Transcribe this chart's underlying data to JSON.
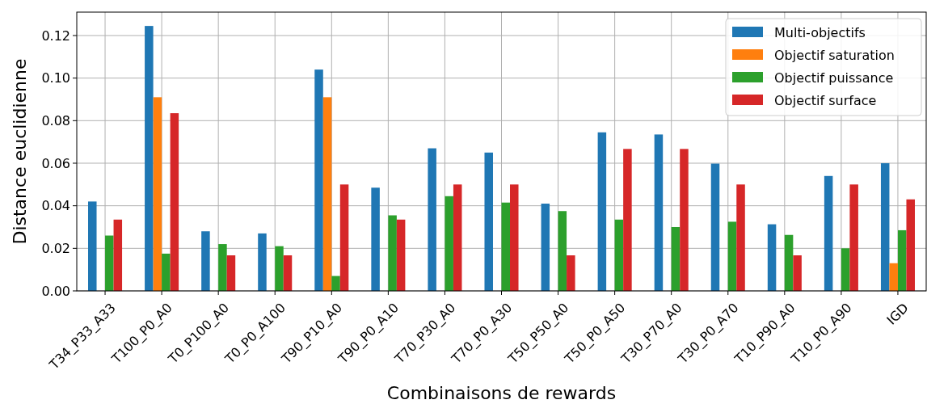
{
  "chart_data": {
    "type": "bar",
    "xlabel": "Combinaisons de rewards",
    "ylabel": "Distance euclidienne",
    "categories": [
      "T34_P33_A33",
      "T100_P0_A0",
      "T0_P100_A0",
      "T0_P0_A100",
      "T90_P10_A0",
      "T90_P0_A10",
      "T70_P30_A0",
      "T70_P0_A30",
      "T50_P50_A0",
      "T50_P0_A50",
      "T30_P70_A0",
      "T30_P0_A70",
      "T10_P90_A0",
      "T10_P0_A90",
      "IGD"
    ],
    "series": [
      {
        "name": "Multi-objectifs",
        "color": "#1f77b4",
        "values": [
          0.042,
          0.1245,
          0.028,
          0.027,
          0.104,
          0.0485,
          0.067,
          0.065,
          0.041,
          0.0745,
          0.0735,
          0.0598,
          0.0313,
          0.054,
          0.06
        ]
      },
      {
        "name": "Objectif saturation",
        "color": "#ff7f0e",
        "values": [
          0,
          0.091,
          0,
          0,
          0.091,
          0,
          0,
          0,
          0,
          0,
          0,
          0,
          0,
          0,
          0.013
        ]
      },
      {
        "name": "Objectif puissance",
        "color": "#2ca02c",
        "values": [
          0.026,
          0.0175,
          0.022,
          0.021,
          0.007,
          0.0355,
          0.0445,
          0.0415,
          0.0375,
          0.0335,
          0.03,
          0.0325,
          0.0263,
          0.02,
          0.0285
        ]
      },
      {
        "name": "Objectif surface",
        "color": "#d62728",
        "values": [
          0.0335,
          0.0835,
          0.0167,
          0.0167,
          0.05,
          0.0335,
          0.05,
          0.05,
          0.0167,
          0.0667,
          0.0667,
          0.05,
          0.0167,
          0.05,
          0.043
        ]
      }
    ],
    "ylim": [
      0,
      0.131
    ],
    "yticks": [
      {
        "value": 0,
        "label": "0.00"
      },
      {
        "value": 0.02,
        "label": "0.02"
      },
      {
        "value": 0.04,
        "label": "0.04"
      },
      {
        "value": 0.06,
        "label": "0.06"
      },
      {
        "value": 0.08,
        "label": "0.08"
      },
      {
        "value": 0.1,
        "label": "0.10"
      },
      {
        "value": 0.12,
        "label": "0.12"
      }
    ],
    "grid": true,
    "legend": "top right"
  }
}
